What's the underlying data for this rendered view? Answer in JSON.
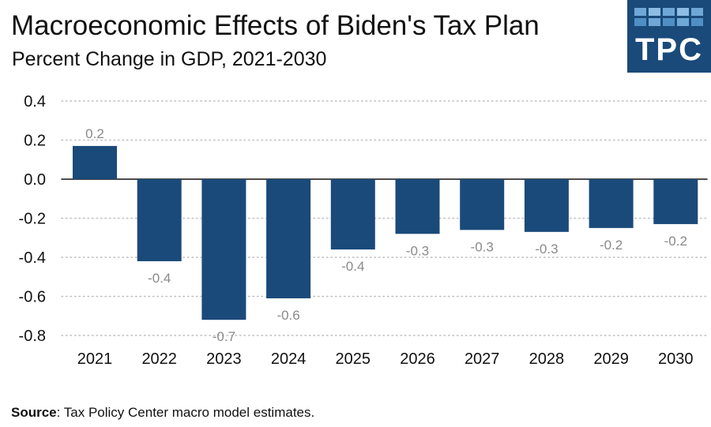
{
  "header": {
    "title": "Macroeconomic Effects of Biden's Tax Plan",
    "subtitle": "Percent Change in GDP, 2021-2030"
  },
  "logo": {
    "text": "TPC",
    "background": "#1a4a7a"
  },
  "footer": {
    "source_label": "Source",
    "source_text": ": Tax Policy Center macro model estimates."
  },
  "colors": {
    "bar": "#1a4a7a",
    "label": "#8a8a8a",
    "grid": "#bfbfbf",
    "axis_text": "#111111"
  },
  "chart_data": {
    "type": "bar",
    "title": "Macroeconomic Effects of Biden's Tax Plan",
    "subtitle": "Percent Change in GDP, 2021-2030",
    "categories": [
      "2021",
      "2022",
      "2023",
      "2024",
      "2025",
      "2026",
      "2027",
      "2028",
      "2029",
      "2030"
    ],
    "values": [
      0.17,
      -0.42,
      -0.72,
      -0.61,
      -0.36,
      -0.28,
      -0.26,
      -0.27,
      -0.25,
      -0.23
    ],
    "data_labels": [
      "0.2",
      "-0.4",
      "-0.7",
      "-0.6",
      "-0.4",
      "-0.3",
      "-0.3",
      "-0.3",
      "-0.2",
      "-0.2"
    ],
    "ylim": [
      -0.8,
      0.4
    ],
    "yticks": [
      0.4,
      0.2,
      0.0,
      -0.2,
      -0.4,
      -0.6,
      -0.8
    ],
    "ytick_labels": [
      "0.4",
      "0.2",
      "0.0",
      "-0.2",
      "-0.4",
      "-0.6",
      "-0.8"
    ],
    "grid": true,
    "grid_style": "dotted",
    "legend": "none"
  }
}
